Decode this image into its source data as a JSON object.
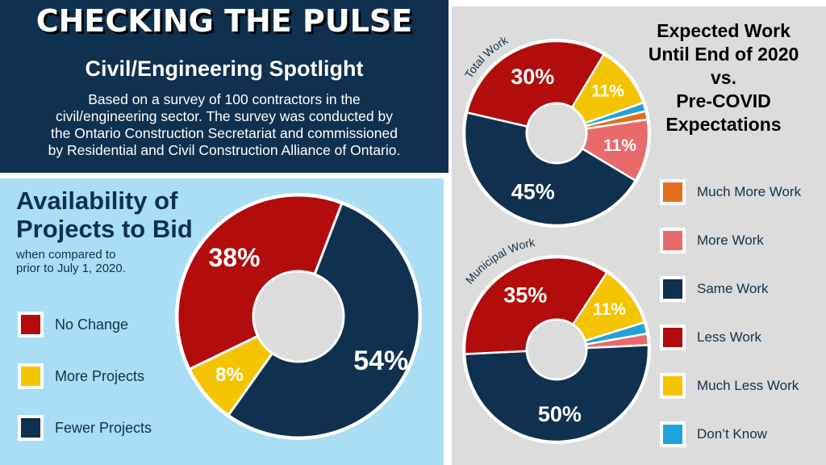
{
  "header": {
    "title": "CHECKING THE PULSE",
    "subtitle": "Civil/Engineering Spotlight",
    "description": [
      "Based on a survey of 100 contractors in the",
      "civil/engineering sector. The survey was conducted by",
      "the Ontario Construction Secretariat and commissioned",
      "by Residential and Civil Construction Alliance of Ontario."
    ]
  },
  "availability": {
    "title_lines": [
      "Availability of",
      "Projects to Bid"
    ],
    "subtitle_lines": [
      "when compared to",
      "prior to July 1, 2020."
    ],
    "legend": [
      {
        "label": "No Change",
        "color": "#b30c0c"
      },
      {
        "label": "More Projects",
        "color": "#f5c400"
      },
      {
        "label": "Fewer Projects",
        "color": "#10304f"
      }
    ]
  },
  "expected": {
    "title_lines": [
      "Expected Work",
      "Until End of 2020",
      "vs.",
      "Pre-COVID",
      "Expectations"
    ],
    "legend": [
      {
        "label": "Much More Work",
        "color": "#e36f1e"
      },
      {
        "label": "More Work",
        "color": "#e86a6a"
      },
      {
        "label": "Same Work",
        "color": "#10304f"
      },
      {
        "label": "Less Work",
        "color": "#b30c0c"
      },
      {
        "label": "Much Less Work",
        "color": "#f5c400"
      },
      {
        "label": "Don’t Know",
        "color": "#1fa3dc"
      }
    ]
  },
  "chart_data": [
    {
      "type": "pie",
      "title": "Availability of Projects to Bid",
      "subtitle": "when compared to prior to July 1, 2020.",
      "categories": [
        "Fewer Projects",
        "More Projects",
        "No Change"
      ],
      "values": [
        54,
        8,
        38
      ],
      "labels": [
        "54%",
        "8%",
        "38%"
      ],
      "colors": [
        "#10304f",
        "#f5c400",
        "#b30c0c"
      ]
    },
    {
      "type": "pie",
      "title": "Total Work",
      "categories": [
        "Much More Work",
        "More Work",
        "Same Work",
        "Less Work",
        "Much Less Work",
        "Don’t Know"
      ],
      "values": [
        1.5,
        11,
        45,
        30,
        11,
        1.5
      ],
      "labels": [
        "",
        "11%",
        "45%",
        "30%",
        "11%",
        ""
      ],
      "colors": [
        "#e36f1e",
        "#e86a6a",
        "#10304f",
        "#b30c0c",
        "#f5c400",
        "#1fa3dc"
      ]
    },
    {
      "type": "pie",
      "title": "Municipal Work",
      "categories": [
        "More Work",
        "Same Work",
        "Less Work",
        "Much Less Work",
        "Don’t Know"
      ],
      "values": [
        2,
        50,
        35,
        11,
        2
      ],
      "labels": [
        "",
        "50%",
        "35%",
        "11%",
        ""
      ],
      "colors": [
        "#e86a6a",
        "#10304f",
        "#b30c0c",
        "#f5c400",
        "#1fa3dc"
      ]
    }
  ]
}
